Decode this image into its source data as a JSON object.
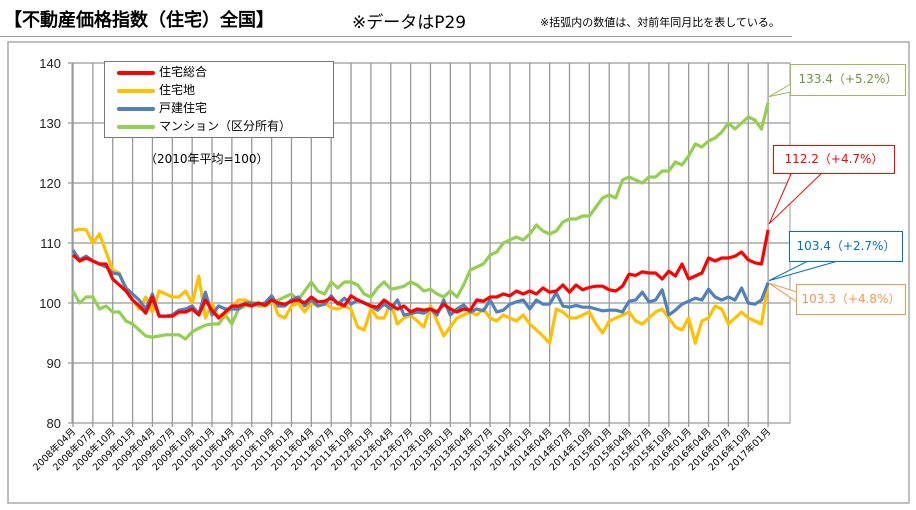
{
  "header": {
    "title": "【不動産価格指数（住宅）全国】",
    "data_note": "※データはP29",
    "note": "※括弧内の数値は、対前年同月比を表している。"
  },
  "chart_data": {
    "type": "line",
    "title": "【不動産価格指数（住宅）全国】",
    "base_note": "（2010年平均=100）",
    "frequency": "monthly",
    "ylim": [
      80,
      140
    ],
    "y_ticks": [
      80,
      90,
      100,
      110,
      120,
      130,
      140
    ],
    "grid": true,
    "legend_position": "top-left",
    "x_tick_labels": [
      "2008年04月",
      "2008年07月",
      "2008年10月",
      "2009年01月",
      "2009年04月",
      "2009年07月",
      "2009年10月",
      "2010年01月",
      "2010年04月",
      "2010年07月",
      "2010年10月",
      "2011年01月",
      "2011年04月",
      "2011年07月",
      "2011年10月",
      "2012年01月",
      "2012年04月",
      "2012年07月",
      "2012年10月",
      "2013年01月",
      "2013年04月",
      "2013年07月",
      "2013年10月",
      "2014年01月",
      "2014年04月",
      "2014年07月",
      "2014年10月",
      "2015年01月",
      "2015年04月",
      "2015年07月",
      "2015年10月",
      "2016年01月",
      "2016年04月",
      "2016年07月",
      "2016年10月",
      "2017年01月"
    ],
    "series": [
      {
        "name": "住宅総合",
        "color": "#ff0000",
        "values": [
          108.0,
          107.0,
          107.5,
          107.0,
          106.5,
          106.5,
          104.0,
          103.0,
          102.0,
          100.5,
          99.5,
          98.3,
          101.0,
          97.8,
          97.8,
          97.8,
          98.5,
          98.5,
          99.0,
          98.0,
          100.5,
          98.8,
          97.5,
          98.5,
          99.5,
          99.5,
          99.8,
          99.5,
          100.0,
          99.6,
          100.5,
          100.0,
          99.8,
          100.3,
          100.5,
          100.0,
          101.0,
          100.2,
          100.3,
          100.8,
          100.0,
          99.5,
          101.2,
          100.5,
          100.0,
          99.5,
          99.3,
          100.5,
          99.7,
          99.0,
          99.5,
          98.5,
          99.0,
          98.8,
          99.0,
          98.5,
          99.8,
          99.0,
          98.5,
          99.0,
          98.8,
          100.5,
          100.3,
          101.0,
          101.0,
          101.5,
          101.2,
          102.0,
          101.5,
          102.0,
          101.5,
          102.5,
          101.8,
          102.0,
          103.0,
          101.8,
          103.0,
          102.2,
          102.6,
          102.8,
          102.8,
          102.2,
          102.0,
          102.8,
          104.8,
          104.6,
          105.2,
          105.0,
          105.0,
          104.0,
          105.3,
          104.5,
          106.5,
          104.0,
          104.5,
          105.0,
          107.5,
          107.0,
          107.5,
          107.5,
          107.8,
          108.5,
          107.2,
          106.7,
          106.5,
          112.2
        ],
        "label": "112.2（+4.7%）"
      },
      {
        "name": "住宅地",
        "color": "#ffc000",
        "values": [
          112.0,
          112.3,
          112.2,
          110.0,
          111.5,
          108.5,
          105.5,
          105.0,
          102.0,
          100.5,
          99.0,
          101.0,
          98.5,
          102.0,
          101.5,
          101.0,
          101.0,
          102.0,
          100.0,
          104.5,
          97.5,
          100.0,
          97.5,
          98.0,
          99.5,
          100.5,
          100.5,
          100.0,
          100.0,
          99.5,
          101.0,
          98.0,
          97.5,
          99.5,
          100.0,
          98.5,
          100.0,
          99.5,
          100.0,
          99.2,
          99.0,
          99.5,
          99.0,
          96.0,
          95.5,
          99.0,
          97.5,
          97.5,
          100.0,
          96.5,
          97.5,
          98.0,
          97.0,
          96.0,
          99.5,
          97.0,
          94.5,
          96.0,
          97.5,
          98.0,
          98.5,
          98.0,
          99.0,
          97.5,
          97.0,
          98.0,
          97.5,
          97.0,
          98.0,
          96.5,
          95.5,
          94.5,
          93.3,
          99.0,
          98.5,
          97.5,
          97.5,
          98.0,
          98.5,
          96.5,
          95.0,
          97.0,
          97.5,
          98.0,
          98.5,
          97.0,
          96.5,
          97.5,
          98.5,
          99.0,
          97.5,
          96.0,
          95.5,
          97.5,
          93.3,
          97.0,
          97.5,
          99.5,
          99.0,
          96.5,
          97.5,
          98.5,
          97.5,
          97.0,
          96.5,
          103.3
        ],
        "label": "103.3（+4.8%）",
        "label_color": "#f79646"
      },
      {
        "name": "戸建住宅",
        "color": "#4f81bd",
        "values": [
          108.8,
          107.2,
          107.8,
          107.0,
          106.5,
          106.0,
          105.0,
          104.8,
          102.5,
          101.5,
          100.5,
          99.0,
          101.5,
          97.8,
          97.8,
          98.0,
          98.8,
          99.0,
          99.5,
          98.2,
          101.8,
          98.0,
          99.5,
          99.0,
          99.0,
          99.0,
          100.0,
          100.0,
          99.8,
          100.0,
          101.2,
          99.5,
          99.5,
          100.5,
          101.0,
          99.5,
          100.5,
          99.5,
          99.8,
          101.2,
          99.8,
          100.8,
          99.8,
          100.5,
          100.0,
          99.5,
          98.8,
          99.8,
          99.0,
          100.5,
          98.0,
          98.2,
          98.5,
          98.3,
          99.0,
          98.0,
          100.5,
          98.0,
          99.0,
          99.7,
          98.5,
          99.0,
          98.7,
          100.5,
          98.5,
          98.8,
          99.8,
          100.2,
          100.5,
          99.0,
          100.5,
          99.8,
          99.8,
          101.7,
          99.5,
          99.3,
          99.6,
          99.3,
          99.3,
          99.0,
          98.7,
          98.8,
          98.8,
          98.5,
          100.3,
          100.5,
          101.8,
          100.2,
          100.5,
          102.2,
          98.0,
          98.8,
          99.8,
          100.3,
          100.8,
          100.5,
          102.3,
          101.0,
          100.5,
          101.0,
          100.5,
          102.5,
          100.0,
          99.8,
          100.5,
          103.4
        ],
        "label": "103.4（+2.7%）",
        "label_color": "#0070c0"
      },
      {
        "name": "マンション（区分所有）",
        "color": "#92d050",
        "values": [
          102.0,
          100.0,
          101.0,
          101.0,
          99.0,
          99.5,
          98.5,
          98.5,
          97.0,
          96.5,
          95.5,
          94.5,
          94.3,
          94.5,
          94.7,
          94.7,
          94.7,
          94.0,
          95.2,
          95.8,
          96.3,
          96.5,
          96.5,
          98.0,
          96.5,
          99.0,
          99.5,
          100.0,
          99.5,
          99.5,
          100.0,
          100.5,
          101.0,
          101.5,
          100.5,
          102.0,
          103.5,
          102.0,
          101.5,
          103.5,
          102.5,
          103.5,
          103.5,
          103.0,
          101.5,
          101.0,
          102.5,
          103.5,
          102.3,
          102.5,
          102.8,
          103.5,
          103.0,
          102.0,
          102.3,
          101.5,
          101.0,
          102.0,
          101.0,
          103.0,
          105.5,
          106.0,
          106.5,
          108.0,
          108.5,
          110.0,
          110.5,
          111.0,
          110.5,
          111.5,
          113.0,
          112.0,
          111.5,
          112.0,
          113.5,
          114.0,
          114.0,
          114.5,
          114.5,
          116.0,
          117.5,
          118.0,
          117.5,
          120.5,
          121.0,
          120.5,
          120.0,
          121.0,
          121.0,
          122.0,
          122.0,
          123.5,
          123.0,
          124.5,
          126.5,
          126.0,
          127.0,
          127.5,
          128.5,
          130.0,
          129.0,
          130.0,
          131.0,
          130.5,
          129.0,
          133.4
        ],
        "label": "133.4（+5.2%）",
        "label_color": "#76923c"
      }
    ]
  }
}
